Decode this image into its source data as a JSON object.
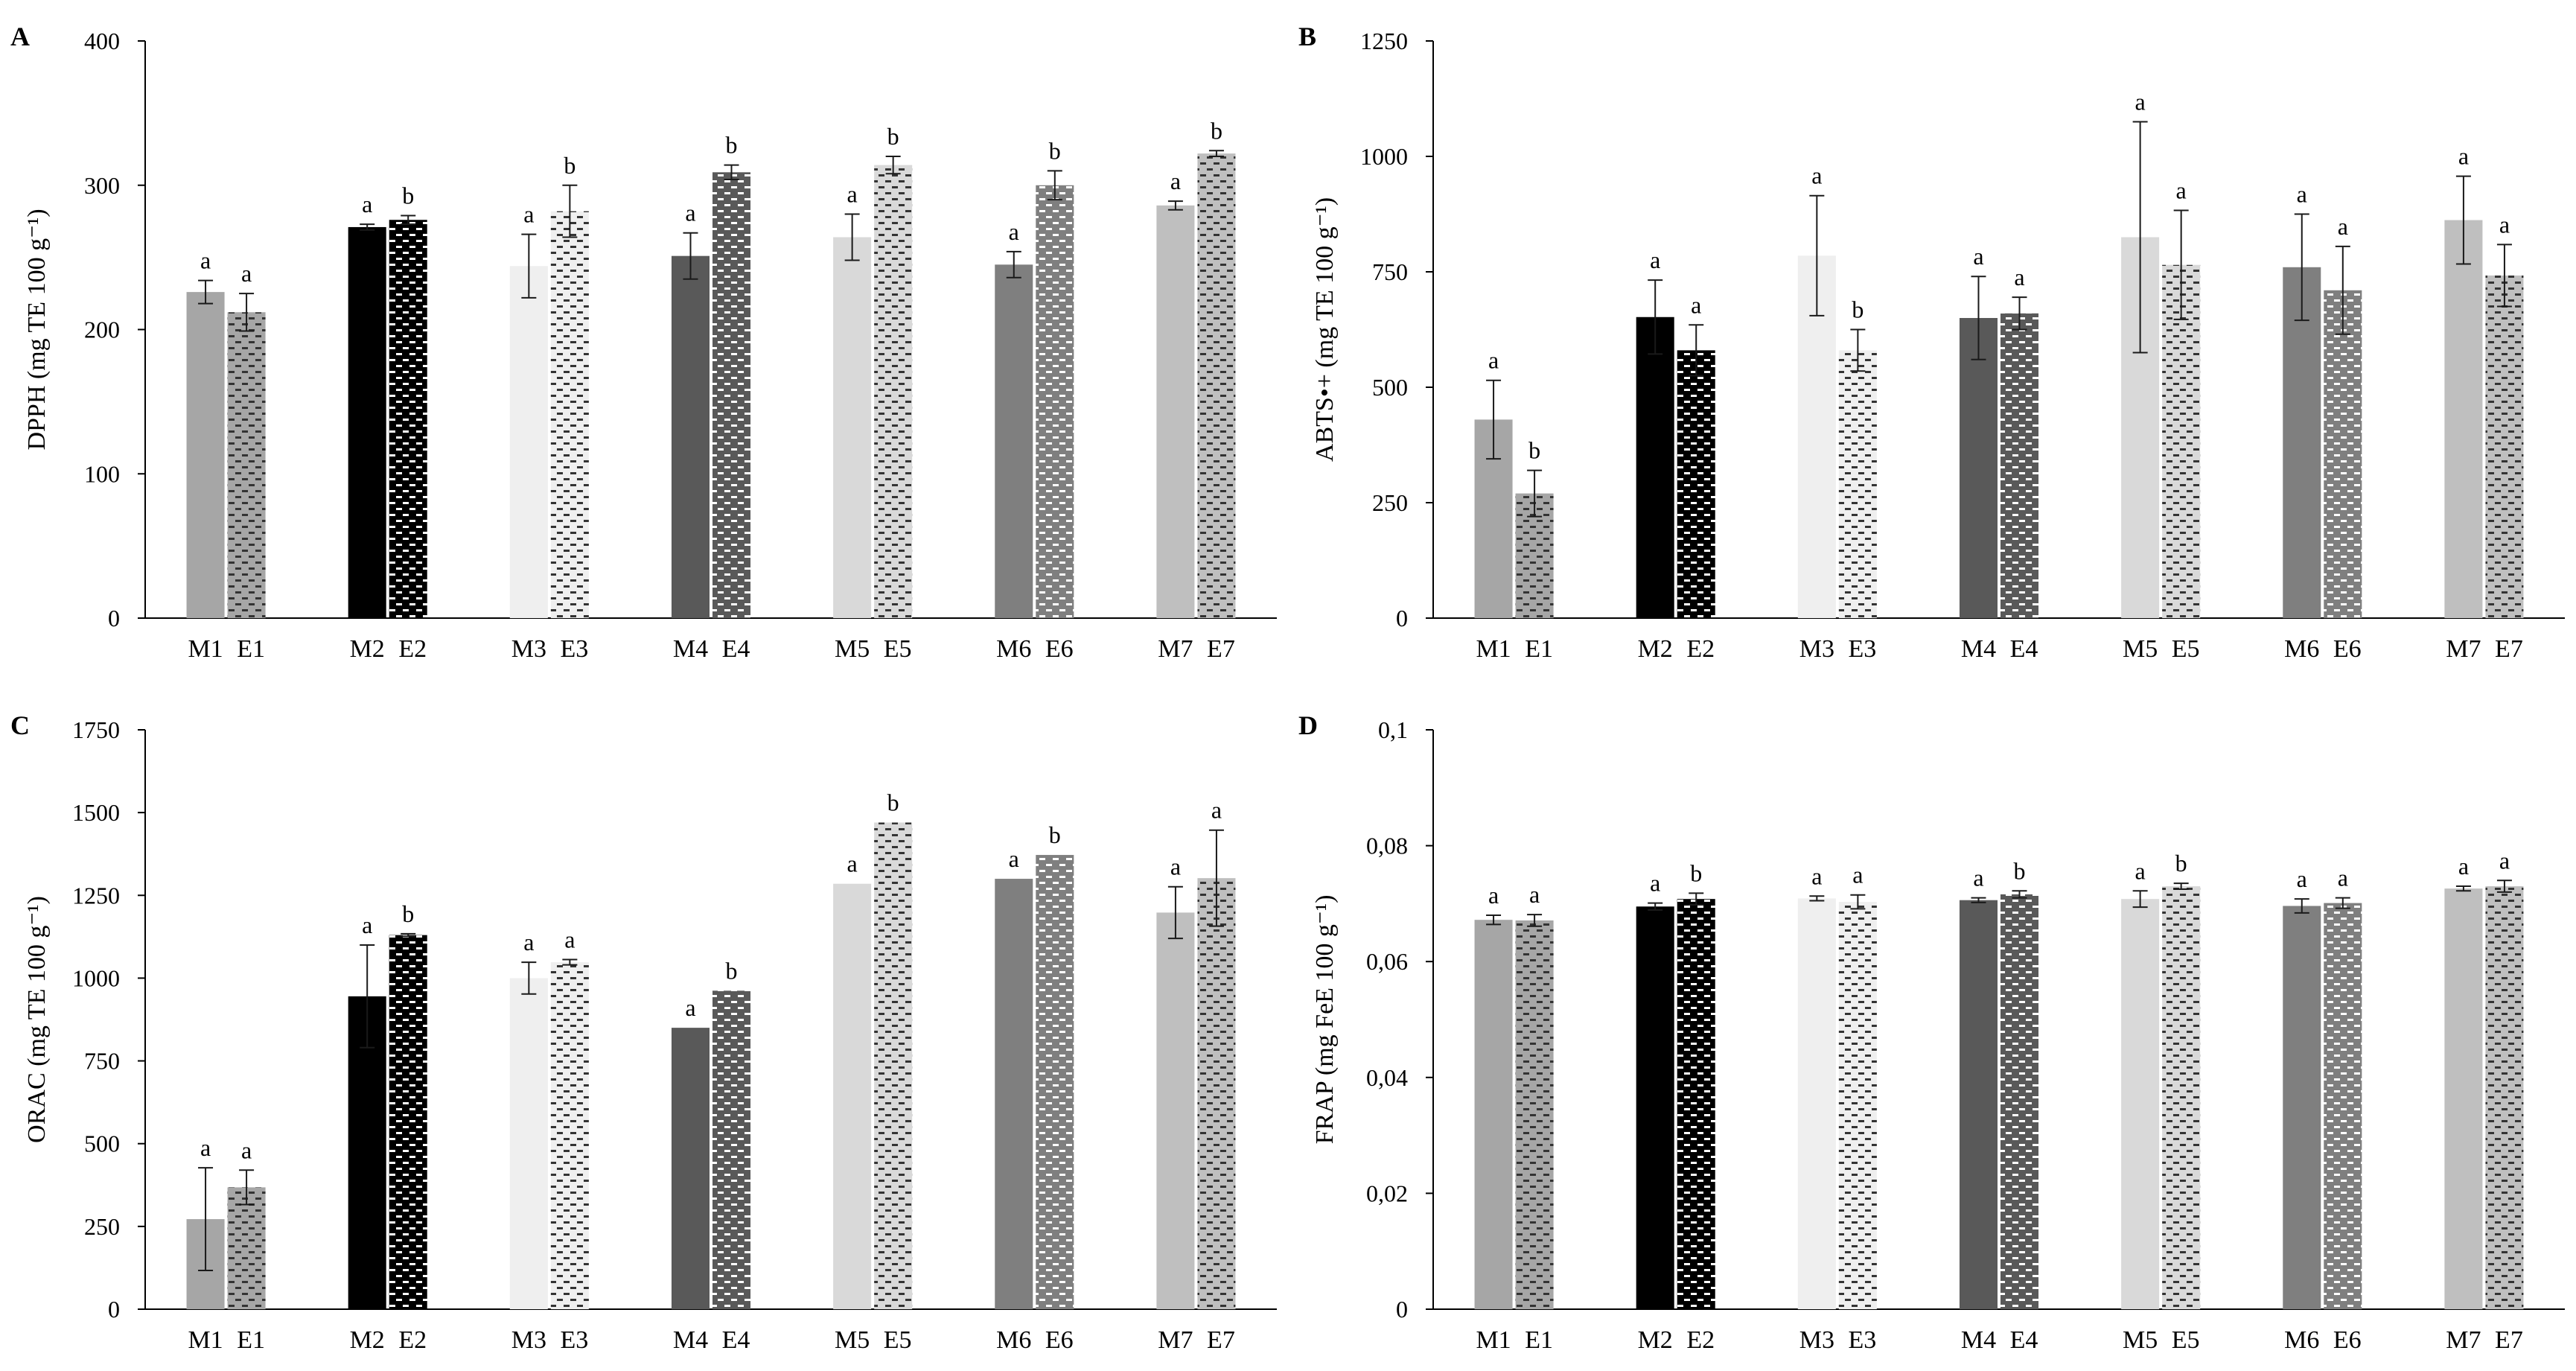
{
  "chart_data": [
    {
      "panel": "A",
      "type": "bar",
      "ylabel": "DPPH (mg TE 100 g⁻¹)",
      "ylim": [
        0,
        400
      ],
      "yticks": [
        "0",
        "100",
        "200",
        "300",
        "400"
      ],
      "ytick_values": [
        0,
        100,
        200,
        300,
        400
      ],
      "groups": [
        {
          "m_label": "M1",
          "e_label": "E1",
          "m_value": 226,
          "m_error": 8,
          "m_sig": "a",
          "e_value": 212,
          "e_error": 13,
          "e_sig": "a"
        },
        {
          "m_label": "M2",
          "e_label": "E2",
          "m_value": 271,
          "m_error": 2,
          "m_sig": "a",
          "e_value": 276,
          "e_error": 3,
          "e_sig": "b"
        },
        {
          "m_label": "M3",
          "e_label": "E3",
          "m_value": 244,
          "m_error": 22,
          "m_sig": "a",
          "e_value": 282,
          "e_error": 18,
          "e_sig": "b"
        },
        {
          "m_label": "M4",
          "e_label": "E4",
          "m_value": 251,
          "m_error": 16,
          "m_sig": "a",
          "e_value": 309,
          "e_error": 5,
          "e_sig": "b"
        },
        {
          "m_label": "M5",
          "e_label": "E5",
          "m_value": 264,
          "m_error": 16,
          "m_sig": "a",
          "e_value": 314,
          "e_error": 6,
          "e_sig": "b"
        },
        {
          "m_label": "M6",
          "e_label": "E6",
          "m_value": 245,
          "m_error": 9,
          "m_sig": "a",
          "e_value": 300,
          "e_error": 10,
          "e_sig": "b"
        },
        {
          "m_label": "M7",
          "e_label": "E7",
          "m_value": 286,
          "m_error": 3,
          "m_sig": "a",
          "e_value": 322,
          "e_error": 2,
          "e_sig": "b"
        }
      ]
    },
    {
      "panel": "B",
      "type": "bar",
      "ylabel": "ABTS•+ (mg TE 100 g⁻¹)",
      "ylim": [
        0,
        1250
      ],
      "yticks": [
        "0",
        "250",
        "500",
        "750",
        "1000",
        "1250"
      ],
      "ytick_values": [
        0,
        250,
        500,
        750,
        1000,
        1250
      ],
      "groups": [
        {
          "m_label": "M1",
          "e_label": "E1",
          "m_value": 430,
          "m_error": 85,
          "m_sig": "a",
          "e_value": 270,
          "e_error": 50,
          "e_sig": "b"
        },
        {
          "m_label": "M2",
          "e_label": "E2",
          "m_value": 652,
          "m_error": 80,
          "m_sig": "a",
          "e_value": 580,
          "e_error": 55,
          "e_sig": "a"
        },
        {
          "m_label": "M3",
          "e_label": "E3",
          "m_value": 785,
          "m_error": 130,
          "m_sig": "a",
          "e_value": 580,
          "e_error": 45,
          "e_sig": "b"
        },
        {
          "m_label": "M4",
          "e_label": "E4",
          "m_value": 650,
          "m_error": 90,
          "m_sig": "a",
          "e_value": 660,
          "e_error": 35,
          "e_sig": "a"
        },
        {
          "m_label": "M5",
          "e_label": "E5",
          "m_value": 825,
          "m_error": 250,
          "m_sig": "a",
          "e_value": 765,
          "e_error": 118,
          "e_sig": "a"
        },
        {
          "m_label": "M6",
          "e_label": "E6",
          "m_value": 760,
          "m_error": 115,
          "m_sig": "a",
          "e_value": 710,
          "e_error": 95,
          "e_sig": "a"
        },
        {
          "m_label": "M7",
          "e_label": "E7",
          "m_value": 862,
          "m_error": 95,
          "m_sig": "a",
          "e_value": 742,
          "e_error": 67,
          "e_sig": "a"
        }
      ]
    },
    {
      "panel": "C",
      "type": "bar",
      "ylabel": "ORAC (mg TE 100 g⁻¹)",
      "ylim": [
        0,
        1750
      ],
      "yticks": [
        "0",
        "250",
        "500",
        "750",
        "1000",
        "1250",
        "1500",
        "1750"
      ],
      "ytick_values": [
        0,
        250,
        500,
        750,
        1000,
        1250,
        1500,
        1750
      ],
      "groups": [
        {
          "m_label": "M1",
          "e_label": "E1",
          "m_value": 272,
          "m_error": 155,
          "m_sig": "a",
          "e_value": 368,
          "e_error": 52,
          "e_sig": "a"
        },
        {
          "m_label": "M2",
          "e_label": "E2",
          "m_value": 945,
          "m_error": 155,
          "m_sig": "a",
          "e_value": 1130,
          "e_error": 4,
          "e_sig": "b"
        },
        {
          "m_label": "M3",
          "e_label": "E3",
          "m_value": 1000,
          "m_error": 48,
          "m_sig": "a",
          "e_value": 1048,
          "e_error": 8,
          "e_sig": "a"
        },
        {
          "m_label": "M4",
          "e_label": "E4",
          "m_value": 850,
          "m_error": 0,
          "m_sig": "a",
          "e_value": 962,
          "e_error": 0,
          "e_sig": "b"
        },
        {
          "m_label": "M5",
          "e_label": "E5",
          "m_value": 1285,
          "m_error": 0,
          "m_sig": "a",
          "e_value": 1470,
          "e_error": 0,
          "e_sig": "b"
        },
        {
          "m_label": "M6",
          "e_label": "E6",
          "m_value": 1300,
          "m_error": 0,
          "m_sig": "a",
          "e_value": 1372,
          "e_error": 0,
          "e_sig": "b"
        },
        {
          "m_label": "M7",
          "e_label": "E7",
          "m_value": 1198,
          "m_error": 78,
          "m_sig": "a",
          "e_value": 1302,
          "e_error": 145,
          "e_sig": "a"
        }
      ]
    },
    {
      "panel": "D",
      "type": "bar",
      "ylabel": "FRAP (mg FeE 100 g⁻¹)",
      "ylim": [
        0,
        0.1
      ],
      "yticks": [
        "0",
        "0,02",
        "0,04",
        "0,06",
        "0,08",
        "0,1"
      ],
      "ytick_values": [
        0,
        0.02,
        0.04,
        0.06,
        0.08,
        0.1
      ],
      "groups": [
        {
          "m_label": "M1",
          "e_label": "E1",
          "m_value": 0.0672,
          "m_error": 0.0008,
          "m_sig": "a",
          "e_value": 0.0671,
          "e_error": 0.001,
          "e_sig": "a"
        },
        {
          "m_label": "M2",
          "e_label": "E2",
          "m_value": 0.0695,
          "m_error": 0.0006,
          "m_sig": "a",
          "e_value": 0.0708,
          "e_error": 0.001,
          "e_sig": "b"
        },
        {
          "m_label": "M3",
          "e_label": "E3",
          "m_value": 0.0709,
          "m_error": 0.0004,
          "m_sig": "a",
          "e_value": 0.0703,
          "e_error": 0.0012,
          "e_sig": "a"
        },
        {
          "m_label": "M4",
          "e_label": "E4",
          "m_value": 0.0706,
          "m_error": 0.0004,
          "m_sig": "a",
          "e_value": 0.0716,
          "e_error": 0.0006,
          "e_sig": "b"
        },
        {
          "m_label": "M5",
          "e_label": "E5",
          "m_value": 0.0708,
          "m_error": 0.0014,
          "m_sig": "a",
          "e_value": 0.073,
          "e_error": 0.0005,
          "e_sig": "b"
        },
        {
          "m_label": "M6",
          "e_label": "E6",
          "m_value": 0.0696,
          "m_error": 0.0012,
          "m_sig": "a",
          "e_value": 0.0701,
          "e_error": 0.0009,
          "e_sig": "a"
        },
        {
          "m_label": "M7",
          "e_label": "E7",
          "m_value": 0.0726,
          "m_error": 0.0004,
          "m_sig": "a",
          "e_value": 0.073,
          "e_error": 0.001,
          "e_sig": "a"
        }
      ]
    }
  ],
  "colors": {
    "g1": "#a6a6a6",
    "g2": "#000000",
    "g3": "#efefef",
    "g4": "#595959",
    "g5": "#d9d9d9",
    "g6": "#7f7f7f",
    "g7": "#bfbfbf",
    "axis": "#000000",
    "errorbar": "#1a1a1a"
  }
}
